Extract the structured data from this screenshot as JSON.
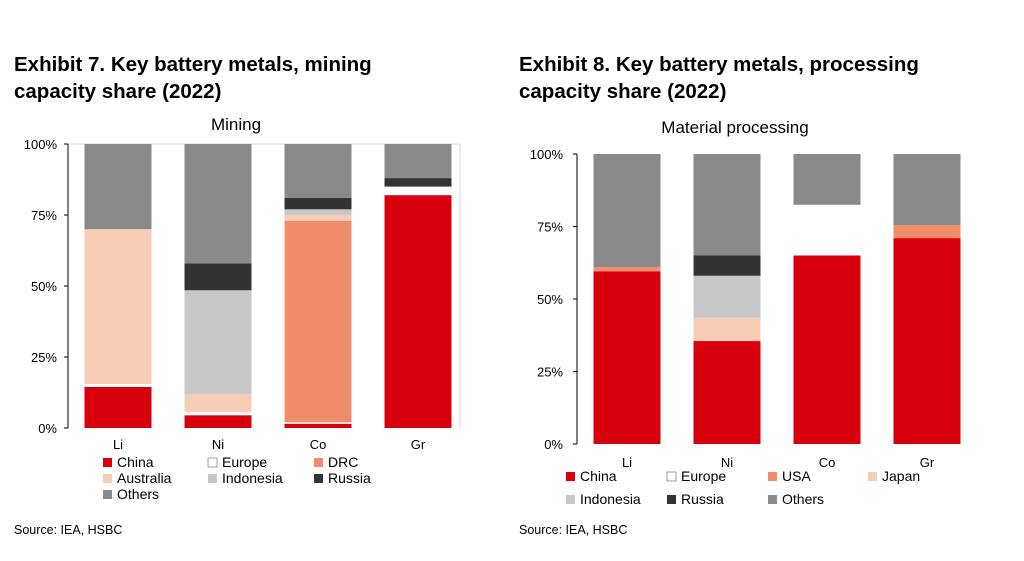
{
  "left": {
    "exhibit_title_line1": "Exhibit 7. Key battery metals, mining",
    "exhibit_title_line2": "capacity share (2022)",
    "source": "Source: IEA, HSBC",
    "chart_data": {
      "type": "bar",
      "stacked": true,
      "title": "Mining",
      "categories": [
        "Li",
        "Ni",
        "Co",
        "Gr"
      ],
      "y_ticks": [
        "100%",
        "75%",
        "50%",
        "25%",
        "0%"
      ],
      "ylim": [
        0,
        100
      ],
      "series": [
        {
          "name": "China",
          "color": "#d9000d",
          "values": [
            14.5,
            4.5,
            1.5,
            82
          ]
        },
        {
          "name": "Europe",
          "color": "#ffffff",
          "values": [
            1,
            1,
            0.5,
            3
          ]
        },
        {
          "name": "DRC",
          "color": "#f08c69",
          "values": [
            0,
            0,
            71,
            0
          ]
        },
        {
          "name": "Australia",
          "color": "#f8cdb8",
          "values": [
            54.5,
            6.5,
            2,
            0
          ]
        },
        {
          "name": "Indonesia",
          "color": "#c7c7c7",
          "values": [
            0,
            36.5,
            2,
            0
          ]
        },
        {
          "name": "Russia",
          "color": "#333333",
          "values": [
            0,
            9.5,
            4,
            3
          ]
        },
        {
          "name": "Others",
          "color": "#898989",
          "values": [
            30,
            42,
            19,
            12
          ]
        }
      ],
      "legend_rows": [
        [
          "China",
          "Europe",
          "DRC"
        ],
        [
          "Australia",
          "Indonesia",
          "Russia"
        ],
        [
          "Others"
        ]
      ]
    }
  },
  "right": {
    "exhibit_title_line1": "Exhibit 8. Key battery metals, processing",
    "exhibit_title_line2": "capacity share (2022)",
    "source": "Source: IEA, HSBC",
    "chart_data": {
      "type": "bar",
      "stacked": true,
      "title": "Material processing",
      "categories": [
        "Li",
        "Ni",
        "Co",
        "Gr"
      ],
      "y_ticks": [
        "100%",
        "75%",
        "50%",
        "25%",
        "0%"
      ],
      "ylim": [
        0,
        100
      ],
      "series": [
        {
          "name": "China",
          "color": "#d9000d",
          "values": [
            59.5,
            35.5,
            65,
            71
          ]
        },
        {
          "name": "Europe",
          "color": "#ffffff",
          "values": [
            0,
            0,
            17.5,
            0
          ]
        },
        {
          "name": "USA",
          "color": "#f08c69",
          "values": [
            1.5,
            0,
            0,
            4.5
          ]
        },
        {
          "name": "Japan",
          "color": "#f8cdb8",
          "values": [
            0,
            8,
            0,
            0
          ]
        },
        {
          "name": "Indonesia",
          "color": "#c7c7c7",
          "values": [
            0,
            14.5,
            0,
            0
          ]
        },
        {
          "name": "Russia",
          "color": "#333333",
          "values": [
            0,
            7,
            0,
            0
          ]
        },
        {
          "name": "Others",
          "color": "#898989",
          "values": [
            39,
            35,
            17.5,
            24.5
          ]
        }
      ],
      "legend_rows": [
        [
          "China",
          "Europe",
          "USA",
          "Japan"
        ],
        [
          "Indonesia",
          "Russia",
          "Others"
        ]
      ]
    }
  }
}
